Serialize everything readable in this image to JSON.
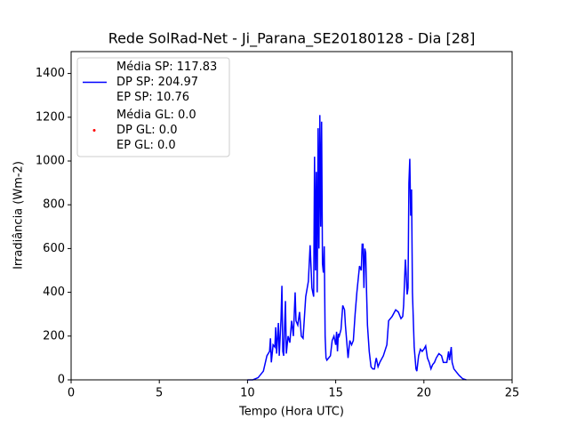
{
  "chart_data": {
    "type": "line",
    "title": "Rede SolRad-Net - Ji_Parana_SE20180128 - Dia [28]",
    "xlabel": "Tempo (Hora UTC)",
    "ylabel": "Irradiância (Wm-2)",
    "xlim": [
      0,
      25
    ],
    "xticks": [
      0,
      5,
      10,
      15,
      20,
      25
    ],
    "ylim": [
      0,
      1500
    ],
    "yticks": [
      0,
      200,
      400,
      600,
      800,
      1000,
      1200,
      1400
    ],
    "legend": "upper left",
    "series": [
      {
        "name": "Média SP: 117.83\nDP SP: 204.97\nEP SP: 10.76",
        "type": "line",
        "color": "#0000ff",
        "x": [
          10.0,
          10.3,
          10.6,
          10.9,
          11.1,
          11.25,
          11.3,
          11.35,
          11.45,
          11.55,
          11.6,
          11.65,
          11.75,
          11.8,
          11.9,
          11.95,
          12.0,
          12.05,
          12.15,
          12.2,
          12.3,
          12.4,
          12.5,
          12.6,
          12.7,
          12.75,
          12.85,
          12.95,
          13.05,
          13.15,
          13.3,
          13.45,
          13.55,
          13.65,
          13.75,
          13.8,
          13.85,
          13.9,
          13.95,
          14.0,
          14.05,
          14.1,
          14.15,
          14.2,
          14.25,
          14.3,
          14.35,
          14.4,
          14.45,
          14.5,
          14.6,
          14.7,
          14.8,
          14.9,
          15.0,
          15.05,
          15.1,
          15.15,
          15.2,
          15.3,
          15.4,
          15.5,
          15.55,
          15.65,
          15.7,
          15.8,
          15.9,
          16.0,
          16.1,
          16.2,
          16.3,
          16.35,
          16.45,
          16.5,
          16.55,
          16.6,
          16.65,
          16.7,
          16.75,
          16.8,
          16.9,
          17.0,
          17.1,
          17.2,
          17.25,
          17.3,
          17.4,
          17.5,
          17.7,
          17.9,
          18.0,
          18.2,
          18.4,
          18.55,
          18.7,
          18.8,
          18.85,
          18.95,
          19.0,
          19.05,
          19.1,
          19.15,
          19.2,
          19.25,
          19.3,
          19.35,
          19.45,
          19.55,
          19.6,
          19.7,
          19.8,
          19.9,
          20.0,
          20.1,
          20.2,
          20.3,
          20.4,
          20.5,
          20.6,
          20.7,
          20.85,
          21.0,
          21.1,
          21.2,
          21.3,
          21.4,
          21.45,
          21.55,
          21.6,
          21.7,
          21.8,
          22.0,
          22.2,
          22.4
        ],
        "values": [
          0,
          0,
          10,
          40,
          110,
          130,
          190,
          80,
          160,
          150,
          240,
          120,
          260,
          110,
          280,
          430,
          130,
          110,
          360,
          120,
          200,
          170,
          270,
          200,
          400,
          270,
          250,
          310,
          200,
          190,
          380,
          450,
          615,
          420,
          380,
          1020,
          500,
          950,
          400,
          1150,
          600,
          1210,
          700,
          1180,
          530,
          490,
          610,
          200,
          100,
          90,
          100,
          110,
          180,
          200,
          160,
          220,
          130,
          210,
          200,
          230,
          340,
          320,
          250,
          150,
          100,
          180,
          160,
          180,
          300,
          400,
          480,
          520,
          500,
          620,
          620,
          420,
          600,
          580,
          400,
          250,
          130,
          60,
          50,
          50,
          80,
          100,
          60,
          80,
          110,
          160,
          270,
          290,
          320,
          310,
          280,
          290,
          340,
          550,
          480,
          390,
          420,
          900,
          1010,
          750,
          870,
          400,
          150,
          50,
          40,
          110,
          140,
          130,
          140,
          155,
          100,
          80,
          50,
          70,
          80,
          100,
          120,
          110,
          80,
          80,
          80,
          130,
          90,
          150,
          80,
          50,
          40,
          20,
          5,
          0
        ]
      },
      {
        "name": "Média GL: 0.0\nDP GL: 0.0\nEP GL: 0.0",
        "type": "scatter",
        "color": "#ff0000",
        "x": [],
        "values": []
      }
    ]
  }
}
